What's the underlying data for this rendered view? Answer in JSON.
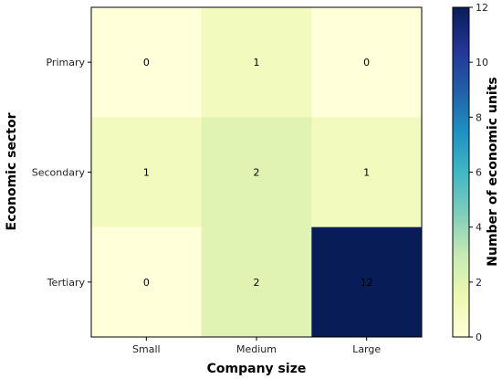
{
  "chart_data": {
    "type": "heatmap",
    "title": "",
    "xlabel": "Company size",
    "ylabel": "Economic sector",
    "x_categories": [
      "Small",
      "Medium",
      "Large"
    ],
    "y_categories": [
      "Primary",
      "Secondary",
      "Tertiary"
    ],
    "values": [
      [
        0,
        1,
        0
      ],
      [
        1,
        2,
        1
      ],
      [
        0,
        2,
        12
      ]
    ],
    "colorbar": {
      "label": "Number of economic units",
      "range": [
        0,
        12
      ],
      "ticks": [
        "0",
        "2",
        "4",
        "6",
        "8",
        "10",
        "12"
      ],
      "colormap": "YlGnBu"
    }
  }
}
